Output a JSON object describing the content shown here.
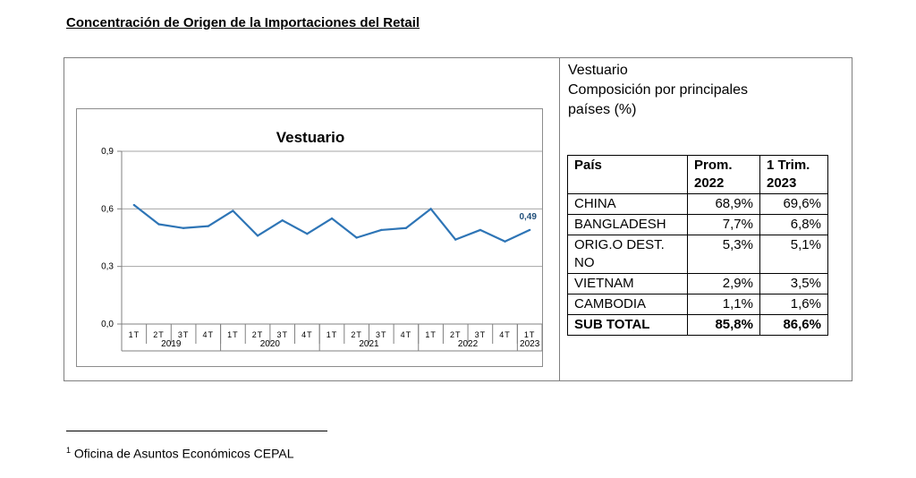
{
  "document": {
    "title": "Concentración de Origen de la Importaciones del Retail",
    "footnote_marker": "1",
    "footnote_text": "Oficina de Asuntos Económicos CEPAL"
  },
  "side_caption": {
    "line1": "Vestuario",
    "line2": "Composición por principales",
    "line3": "países (%)"
  },
  "table": {
    "headers": [
      "País",
      "Prom. 2022",
      "1 Trim. 2023"
    ],
    "rows": [
      {
        "country": "CHINA",
        "prom_2022": "68,9%",
        "trim_2023": "69,6%"
      },
      {
        "country": "BANGLADESH",
        "prom_2022": "7,7%",
        "trim_2023": "6,8%"
      },
      {
        "country": "ORIG.O DEST. NO",
        "prom_2022": "5,3%",
        "trim_2023": "5,1%"
      },
      {
        "country": "VIETNAM",
        "prom_2022": "2,9%",
        "trim_2023": "3,5%"
      },
      {
        "country": "CAMBODIA",
        "prom_2022": "1,1%",
        "trim_2023": "1,6%"
      }
    ],
    "total": {
      "label": "SUB TOTAL",
      "prom_2022": "85,8%",
      "trim_2023": "86,6%"
    }
  },
  "chart_data": {
    "type": "line",
    "title": "Vestuario",
    "categories": [
      "1T",
      "2T",
      "3T",
      "4T",
      "1T",
      "2T",
      "3T",
      "4T",
      "1T",
      "2T",
      "3T",
      "4T",
      "1T",
      "2T",
      "3T",
      "4T",
      "1T"
    ],
    "year_groups": [
      {
        "label": "2019",
        "span": 4
      },
      {
        "label": "2020",
        "span": 4
      },
      {
        "label": "2021",
        "span": 4
      },
      {
        "label": "2022",
        "span": 4
      },
      {
        "label": "2023",
        "span": 1
      }
    ],
    "series": [
      {
        "values": [
          0.62,
          0.52,
          0.5,
          0.51,
          0.59,
          0.46,
          0.54,
          0.47,
          0.55,
          0.45,
          0.49,
          0.5,
          0.6,
          0.44,
          0.49,
          0.43,
          0.49
        ],
        "color": "#2e75b6"
      }
    ],
    "last_label": "0,49",
    "ylim": [
      0,
      0.9
    ],
    "yticks": [
      "0,0",
      "0,3",
      "0,6",
      "0,9"
    ],
    "grid": true
  }
}
